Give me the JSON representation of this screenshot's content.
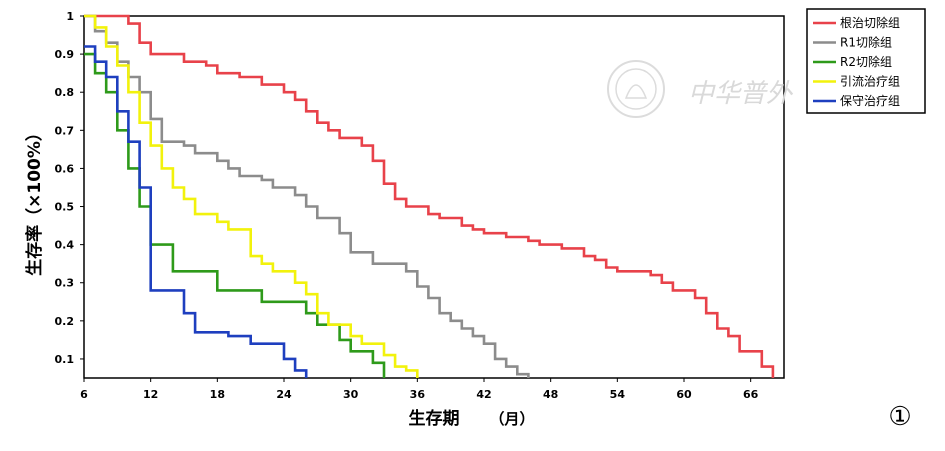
{
  "chart_data": {
    "type": "line",
    "subtype": "kaplan-meier step",
    "xlabel": "生存期",
    "xlabel_unit": "（月）",
    "ylabel": "生存率（×100%）",
    "xlim": [
      6,
      69
    ],
    "ylim": [
      0.05,
      1.0
    ],
    "xticks": [
      6,
      12,
      18,
      24,
      30,
      36,
      42,
      48,
      54,
      60,
      66
    ],
    "yticks": [
      0.1,
      0.2,
      0.3,
      0.4,
      0.5,
      0.6,
      0.7,
      0.8,
      0.9,
      1.0
    ],
    "ytick_labels": [
      "0.1",
      "0.2",
      "0.3",
      "0.4",
      "0.5",
      "0.6",
      "0.7",
      "0.8",
      "0.9",
      "1"
    ],
    "grid": false,
    "legend_position": "top-right outside",
    "figure_label": "①",
    "watermark_text": "中华普外",
    "series": [
      {
        "name": "根治切除组",
        "color": "#e8424a",
        "points": [
          [
            6,
            1.0
          ],
          [
            10,
            1.0
          ],
          [
            10,
            0.98
          ],
          [
            11,
            0.98
          ],
          [
            11,
            0.93
          ],
          [
            12,
            0.93
          ],
          [
            12,
            0.9
          ],
          [
            15,
            0.9
          ],
          [
            15,
            0.88
          ],
          [
            17,
            0.88
          ],
          [
            17,
            0.87
          ],
          [
            18,
            0.87
          ],
          [
            18,
            0.85
          ],
          [
            20,
            0.85
          ],
          [
            20,
            0.84
          ],
          [
            22,
            0.84
          ],
          [
            22,
            0.82
          ],
          [
            24,
            0.82
          ],
          [
            24,
            0.8
          ],
          [
            25,
            0.8
          ],
          [
            25,
            0.78
          ],
          [
            26,
            0.78
          ],
          [
            26,
            0.75
          ],
          [
            27,
            0.75
          ],
          [
            27,
            0.72
          ],
          [
            28,
            0.72
          ],
          [
            28,
            0.7
          ],
          [
            29,
            0.7
          ],
          [
            29,
            0.68
          ],
          [
            31,
            0.68
          ],
          [
            31,
            0.66
          ],
          [
            32,
            0.66
          ],
          [
            32,
            0.62
          ],
          [
            33,
            0.62
          ],
          [
            33,
            0.56
          ],
          [
            34,
            0.56
          ],
          [
            34,
            0.52
          ],
          [
            35,
            0.52
          ],
          [
            35,
            0.5
          ],
          [
            37,
            0.5
          ],
          [
            37,
            0.48
          ],
          [
            38,
            0.48
          ],
          [
            38,
            0.47
          ],
          [
            40,
            0.47
          ],
          [
            40,
            0.45
          ],
          [
            41,
            0.45
          ],
          [
            41,
            0.44
          ],
          [
            42,
            0.44
          ],
          [
            42,
            0.43
          ],
          [
            44,
            0.43
          ],
          [
            44,
            0.42
          ],
          [
            46,
            0.42
          ],
          [
            46,
            0.41
          ],
          [
            47,
            0.41
          ],
          [
            47,
            0.4
          ],
          [
            49,
            0.4
          ],
          [
            49,
            0.39
          ],
          [
            51,
            0.39
          ],
          [
            51,
            0.37
          ],
          [
            52,
            0.37
          ],
          [
            52,
            0.36
          ],
          [
            53,
            0.36
          ],
          [
            53,
            0.34
          ],
          [
            54,
            0.34
          ],
          [
            54,
            0.33
          ],
          [
            57,
            0.33
          ],
          [
            57,
            0.32
          ],
          [
            58,
            0.32
          ],
          [
            58,
            0.3
          ],
          [
            59,
            0.3
          ],
          [
            59,
            0.28
          ],
          [
            61,
            0.28
          ],
          [
            61,
            0.26
          ],
          [
            62,
            0.26
          ],
          [
            62,
            0.22
          ],
          [
            63,
            0.22
          ],
          [
            63,
            0.18
          ],
          [
            64,
            0.18
          ],
          [
            64,
            0.16
          ],
          [
            65,
            0.16
          ],
          [
            65,
            0.12
          ],
          [
            67,
            0.12
          ],
          [
            67,
            0.08
          ],
          [
            68,
            0.08
          ],
          [
            68,
            0.05
          ]
        ]
      },
      {
        "name": "R1切除组",
        "color": "#8c8c8c",
        "points": [
          [
            6,
            1.0
          ],
          [
            7,
            1.0
          ],
          [
            7,
            0.96
          ],
          [
            8,
            0.96
          ],
          [
            8,
            0.93
          ],
          [
            9,
            0.93
          ],
          [
            9,
            0.88
          ],
          [
            10,
            0.88
          ],
          [
            10,
            0.84
          ],
          [
            11,
            0.84
          ],
          [
            11,
            0.8
          ],
          [
            12,
            0.8
          ],
          [
            12,
            0.73
          ],
          [
            13,
            0.73
          ],
          [
            13,
            0.67
          ],
          [
            15,
            0.67
          ],
          [
            15,
            0.66
          ],
          [
            16,
            0.66
          ],
          [
            16,
            0.64
          ],
          [
            18,
            0.64
          ],
          [
            18,
            0.62
          ],
          [
            19,
            0.62
          ],
          [
            19,
            0.6
          ],
          [
            20,
            0.6
          ],
          [
            20,
            0.58
          ],
          [
            22,
            0.58
          ],
          [
            22,
            0.57
          ],
          [
            23,
            0.57
          ],
          [
            23,
            0.55
          ],
          [
            25,
            0.55
          ],
          [
            25,
            0.53
          ],
          [
            26,
            0.53
          ],
          [
            26,
            0.5
          ],
          [
            27,
            0.5
          ],
          [
            27,
            0.47
          ],
          [
            29,
            0.47
          ],
          [
            29,
            0.43
          ],
          [
            30,
            0.43
          ],
          [
            30,
            0.38
          ],
          [
            32,
            0.38
          ],
          [
            32,
            0.35
          ],
          [
            35,
            0.35
          ],
          [
            35,
            0.33
          ],
          [
            36,
            0.33
          ],
          [
            36,
            0.29
          ],
          [
            37,
            0.29
          ],
          [
            37,
            0.26
          ],
          [
            38,
            0.26
          ],
          [
            38,
            0.22
          ],
          [
            39,
            0.22
          ],
          [
            39,
            0.2
          ],
          [
            40,
            0.2
          ],
          [
            40,
            0.18
          ],
          [
            41,
            0.18
          ],
          [
            41,
            0.16
          ],
          [
            42,
            0.16
          ],
          [
            42,
            0.14
          ],
          [
            43,
            0.14
          ],
          [
            43,
            0.1
          ],
          [
            44,
            0.1
          ],
          [
            44,
            0.08
          ],
          [
            45,
            0.08
          ],
          [
            45,
            0.06
          ],
          [
            46,
            0.06
          ],
          [
            46,
            0.05
          ]
        ]
      },
      {
        "name": "R2切除组",
        "color": "#2e9a1a",
        "points": [
          [
            6,
            0.9
          ],
          [
            7,
            0.9
          ],
          [
            7,
            0.85
          ],
          [
            8,
            0.85
          ],
          [
            8,
            0.8
          ],
          [
            9,
            0.8
          ],
          [
            9,
            0.7
          ],
          [
            10,
            0.7
          ],
          [
            10,
            0.6
          ],
          [
            11,
            0.6
          ],
          [
            11,
            0.5
          ],
          [
            12,
            0.5
          ],
          [
            12,
            0.4
          ],
          [
            14,
            0.4
          ],
          [
            14,
            0.33
          ],
          [
            18,
            0.33
          ],
          [
            18,
            0.28
          ],
          [
            22,
            0.28
          ],
          [
            22,
            0.25
          ],
          [
            26,
            0.25
          ],
          [
            26,
            0.22
          ],
          [
            27,
            0.22
          ],
          [
            27,
            0.19
          ],
          [
            29,
            0.19
          ],
          [
            29,
            0.15
          ],
          [
            30,
            0.15
          ],
          [
            30,
            0.12
          ],
          [
            32,
            0.12
          ],
          [
            32,
            0.09
          ],
          [
            33,
            0.09
          ],
          [
            33,
            0.05
          ]
        ]
      },
      {
        "name": "引流治疗组",
        "color": "#f2f20c",
        "points": [
          [
            6,
            1.0
          ],
          [
            7,
            1.0
          ],
          [
            7,
            0.97
          ],
          [
            8,
            0.97
          ],
          [
            8,
            0.92
          ],
          [
            9,
            0.92
          ],
          [
            9,
            0.87
          ],
          [
            10,
            0.87
          ],
          [
            10,
            0.8
          ],
          [
            11,
            0.8
          ],
          [
            11,
            0.72
          ],
          [
            12,
            0.72
          ],
          [
            12,
            0.66
          ],
          [
            13,
            0.66
          ],
          [
            13,
            0.6
          ],
          [
            14,
            0.6
          ],
          [
            14,
            0.55
          ],
          [
            15,
            0.55
          ],
          [
            15,
            0.52
          ],
          [
            16,
            0.52
          ],
          [
            16,
            0.48
          ],
          [
            18,
            0.48
          ],
          [
            18,
            0.46
          ],
          [
            19,
            0.46
          ],
          [
            19,
            0.44
          ],
          [
            21,
            0.44
          ],
          [
            21,
            0.37
          ],
          [
            22,
            0.37
          ],
          [
            22,
            0.35
          ],
          [
            23,
            0.35
          ],
          [
            23,
            0.33
          ],
          [
            25,
            0.33
          ],
          [
            25,
            0.3
          ],
          [
            26,
            0.3
          ],
          [
            26,
            0.27
          ],
          [
            27,
            0.27
          ],
          [
            27,
            0.22
          ],
          [
            28,
            0.22
          ],
          [
            28,
            0.19
          ],
          [
            30,
            0.19
          ],
          [
            30,
            0.16
          ],
          [
            31,
            0.16
          ],
          [
            31,
            0.14
          ],
          [
            33,
            0.14
          ],
          [
            33,
            0.11
          ],
          [
            34,
            0.11
          ],
          [
            34,
            0.08
          ],
          [
            35,
            0.08
          ],
          [
            35,
            0.07
          ],
          [
            36,
            0.07
          ],
          [
            36,
            0.05
          ]
        ]
      },
      {
        "name": "保守治疗组",
        "color": "#1e3fbf",
        "points": [
          [
            6,
            0.92
          ],
          [
            7,
            0.92
          ],
          [
            7,
            0.88
          ],
          [
            8,
            0.88
          ],
          [
            8,
            0.84
          ],
          [
            9,
            0.84
          ],
          [
            9,
            0.75
          ],
          [
            10,
            0.75
          ],
          [
            10,
            0.67
          ],
          [
            11,
            0.67
          ],
          [
            11,
            0.55
          ],
          [
            12,
            0.55
          ],
          [
            12,
            0.28
          ],
          [
            15,
            0.28
          ],
          [
            15,
            0.22
          ],
          [
            16,
            0.22
          ],
          [
            16,
            0.17
          ],
          [
            19,
            0.17
          ],
          [
            19,
            0.16
          ],
          [
            21,
            0.16
          ],
          [
            21,
            0.14
          ],
          [
            24,
            0.14
          ],
          [
            24,
            0.1
          ],
          [
            25,
            0.1
          ],
          [
            25,
            0.07
          ],
          [
            26,
            0.07
          ],
          [
            26,
            0.05
          ]
        ]
      }
    ]
  }
}
